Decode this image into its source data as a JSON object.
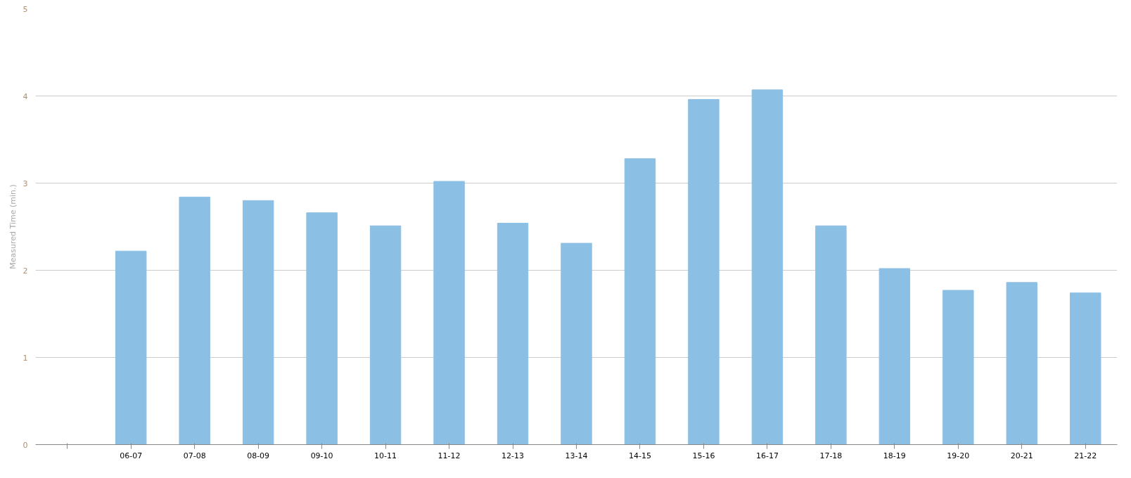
{
  "chart_data": {
    "type": "bar",
    "ylabel": "Measured Time (min.)",
    "categories": [
      null,
      "06-07",
      "07-08",
      "08-09",
      "09-10",
      "10-11",
      "11-12",
      "12-13",
      "13-14",
      "14-15",
      "15-16",
      "16-17",
      "17-18",
      "18-19",
      "19-20",
      "20-21",
      "21-22"
    ],
    "values": [
      null,
      2.22,
      2.84,
      2.8,
      2.66,
      2.51,
      3.02,
      2.54,
      2.31,
      3.28,
      3.96,
      4.07,
      2.51,
      2.02,
      1.77,
      1.86,
      1.74
    ],
    "color": "#8cbfe4",
    "ylim": [
      0,
      5
    ],
    "yticks": [
      0,
      1,
      2,
      3,
      4,
      5
    ],
    "grid": "y"
  }
}
